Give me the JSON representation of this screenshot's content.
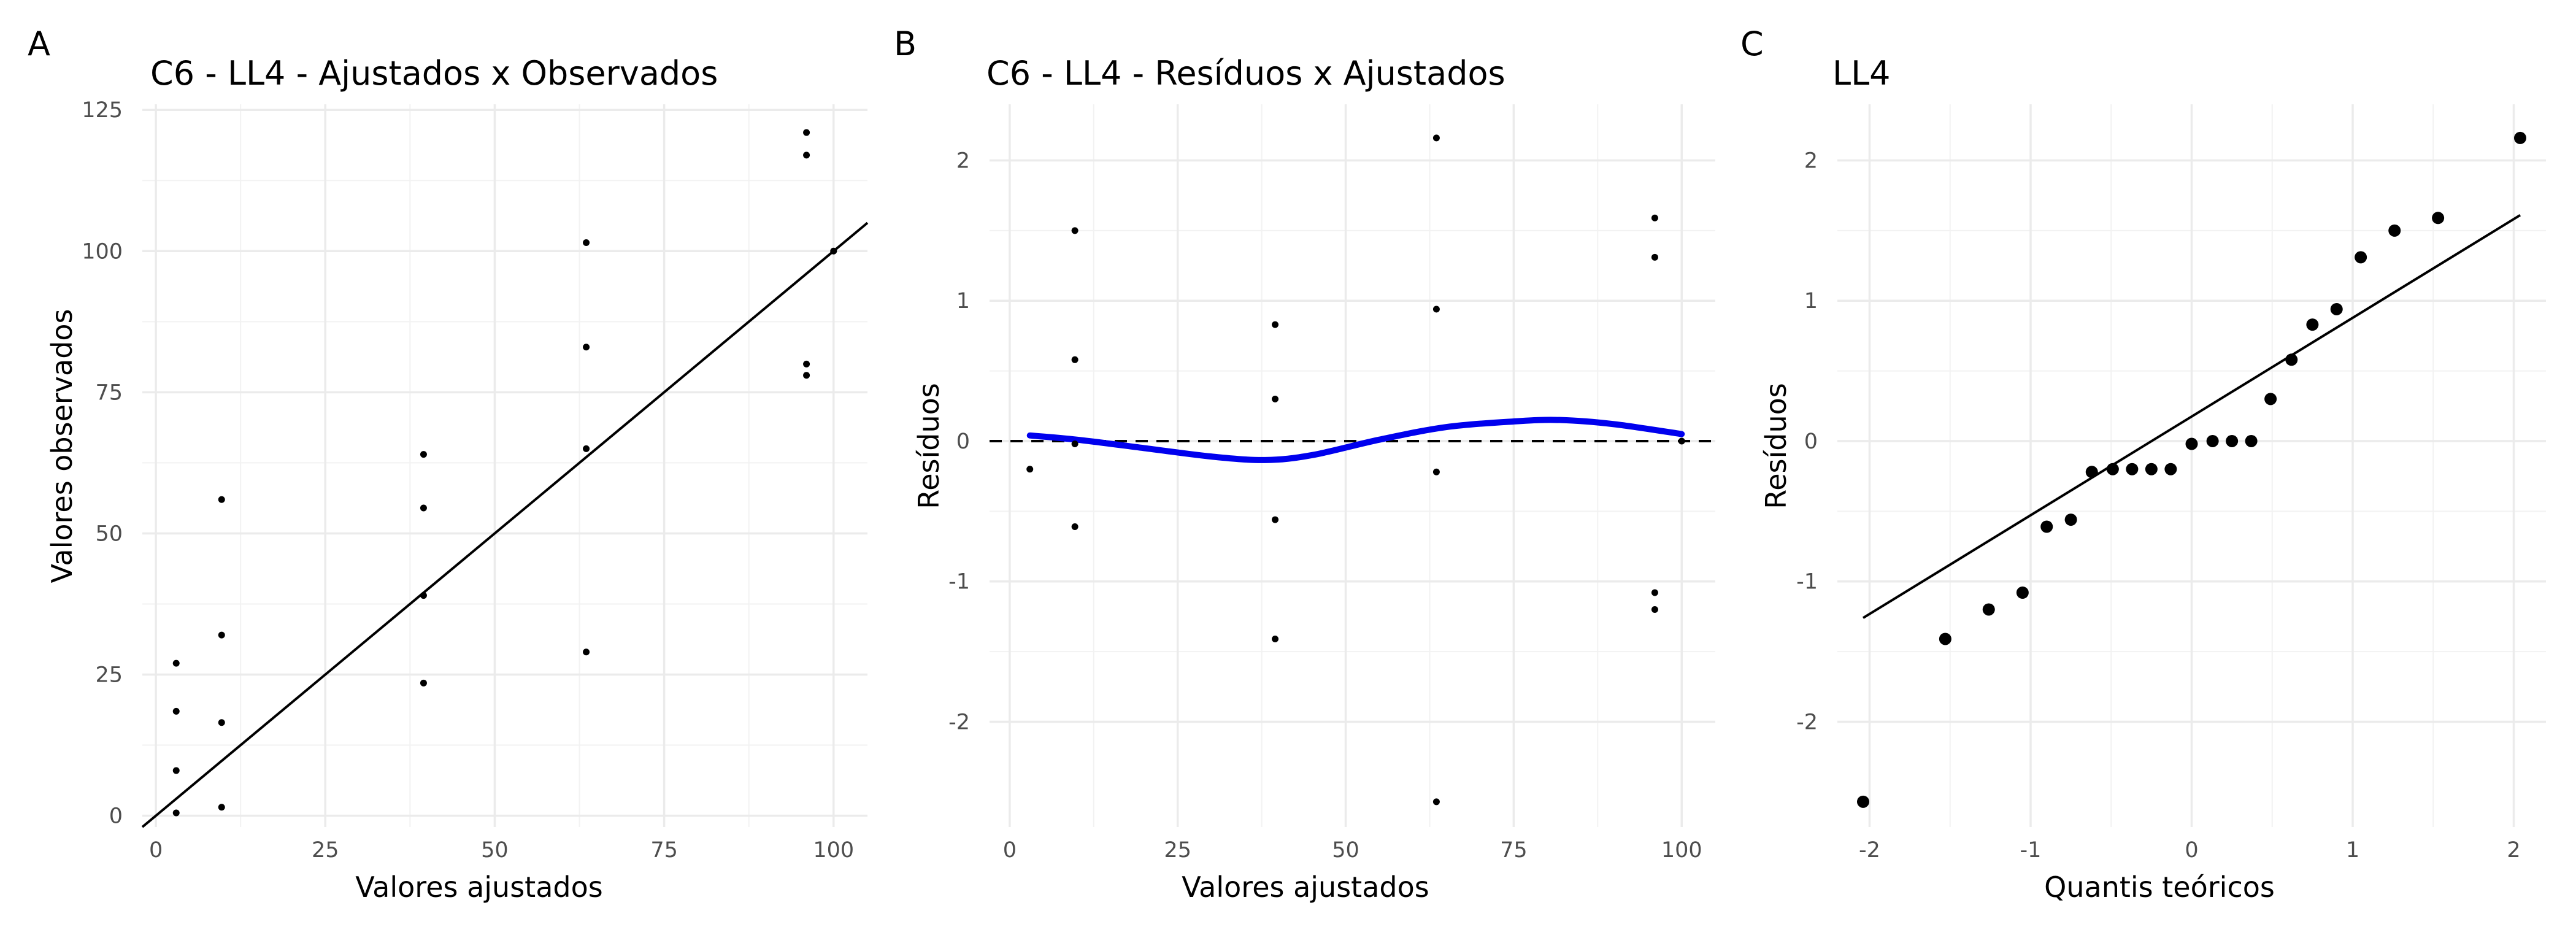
{
  "chart_data": [
    {
      "panel": "A",
      "type": "scatter",
      "title": "C6 - LL4 - Ajustados x Observados",
      "xlabel": "Valores ajustados",
      "ylabel": "Valores observados",
      "xlim": [
        -2,
        105
      ],
      "ylim": [
        -2,
        126
      ],
      "xticks": [
        0,
        25,
        50,
        75,
        100
      ],
      "yticks": [
        0,
        25,
        50,
        75,
        100,
        125
      ],
      "grid": true,
      "reference_line": {
        "slope": 1,
        "intercept": 0
      },
      "points": [
        {
          "x": 3,
          "y": 27
        },
        {
          "x": 3,
          "y": 18.5
        },
        {
          "x": 3,
          "y": 8
        },
        {
          "x": 3,
          "y": 0.5
        },
        {
          "x": 9.7,
          "y": 56
        },
        {
          "x": 9.7,
          "y": 32
        },
        {
          "x": 9.7,
          "y": 16.5
        },
        {
          "x": 9.7,
          "y": 1.5
        },
        {
          "x": 39.5,
          "y": 64
        },
        {
          "x": 39.5,
          "y": 54.5
        },
        {
          "x": 39.5,
          "y": 39
        },
        {
          "x": 39.5,
          "y": 23.5
        },
        {
          "x": 63.5,
          "y": 101.5
        },
        {
          "x": 63.5,
          "y": 83
        },
        {
          "x": 63.5,
          "y": 65
        },
        {
          "x": 63.5,
          "y": 29
        },
        {
          "x": 96,
          "y": 121
        },
        {
          "x": 96,
          "y": 117
        },
        {
          "x": 96,
          "y": 80
        },
        {
          "x": 96,
          "y": 78
        },
        {
          "x": 100,
          "y": 100
        }
      ]
    },
    {
      "panel": "B",
      "type": "scatter",
      "title": "C6 - LL4 - Resíduos x Ajustados",
      "xlabel": "Valores ajustados",
      "ylabel": "Resíduos",
      "xlim": [
        -3,
        105
      ],
      "ylim": [
        -2.75,
        2.4
      ],
      "xticks": [
        0,
        25,
        50,
        75,
        100
      ],
      "yticks": [
        -2,
        -1,
        0,
        1,
        2
      ],
      "grid": true,
      "hline": 0,
      "points": [
        {
          "x": 3,
          "y": -0.2
        },
        {
          "x": 9.7,
          "y": 1.5
        },
        {
          "x": 9.7,
          "y": 0.58
        },
        {
          "x": 9.7,
          "y": -0.02
        },
        {
          "x": 9.7,
          "y": -0.61
        },
        {
          "x": 39.5,
          "y": 0.83
        },
        {
          "x": 39.5,
          "y": 0.3
        },
        {
          "x": 39.5,
          "y": -0.56
        },
        {
          "x": 39.5,
          "y": -1.41
        },
        {
          "x": 63.5,
          "y": 2.16
        },
        {
          "x": 63.5,
          "y": 0.94
        },
        {
          "x": 63.5,
          "y": -0.22
        },
        {
          "x": 63.5,
          "y": -2.57
        },
        {
          "x": 96,
          "y": 1.59
        },
        {
          "x": 96,
          "y": 1.31
        },
        {
          "x": 96,
          "y": -1.08
        },
        {
          "x": 96,
          "y": -1.2
        },
        {
          "x": 100,
          "y": 0
        }
      ],
      "smooth": [
        {
          "x": 3,
          "y": 0.04
        },
        {
          "x": 10,
          "y": 0.01
        },
        {
          "x": 20,
          "y": -0.05
        },
        {
          "x": 30,
          "y": -0.11
        },
        {
          "x": 38,
          "y": -0.135
        },
        {
          "x": 45,
          "y": -0.1
        },
        {
          "x": 55,
          "y": 0.01
        },
        {
          "x": 65,
          "y": 0.1
        },
        {
          "x": 75,
          "y": 0.14
        },
        {
          "x": 82,
          "y": 0.15
        },
        {
          "x": 90,
          "y": 0.12
        },
        {
          "x": 100,
          "y": 0.05
        }
      ]
    },
    {
      "panel": "C",
      "type": "scatter",
      "title": "LL4",
      "xlabel": "Quantis teóricos",
      "ylabel": "Resíduos",
      "xlim": [
        -2.2,
        2.2
      ],
      "ylim": [
        -2.75,
        2.4
      ],
      "xticks": [
        -2,
        -1,
        0,
        1,
        2
      ],
      "yticks": [
        -2,
        -1,
        0,
        1,
        2
      ],
      "grid": true,
      "reference_line": {
        "x1": -2.04,
        "y1": -1.26,
        "x2": 2.04,
        "y2": 1.61
      },
      "points": [
        {
          "x": -2.04,
          "y": -2.57
        },
        {
          "x": -1.53,
          "y": -1.41
        },
        {
          "x": -1.26,
          "y": -1.2
        },
        {
          "x": -1.05,
          "y": -1.08
        },
        {
          "x": -0.9,
          "y": -0.61
        },
        {
          "x": -0.75,
          "y": -0.56
        },
        {
          "x": -0.62,
          "y": -0.22
        },
        {
          "x": -0.49,
          "y": -0.2
        },
        {
          "x": -0.37,
          "y": -0.2
        },
        {
          "x": -0.25,
          "y": -0.2
        },
        {
          "x": -0.13,
          "y": -0.2
        },
        {
          "x": 0,
          "y": -0.02
        },
        {
          "x": 0.13,
          "y": 0
        },
        {
          "x": 0.25,
          "y": 0
        },
        {
          "x": 0.37,
          "y": 0
        },
        {
          "x": 0.49,
          "y": 0.3
        },
        {
          "x": 0.62,
          "y": 0.58
        },
        {
          "x": 0.75,
          "y": 0.83
        },
        {
          "x": 0.9,
          "y": 0.94
        },
        {
          "x": 1.05,
          "y": 1.31
        },
        {
          "x": 1.26,
          "y": 1.5
        },
        {
          "x": 1.53,
          "y": 1.59
        },
        {
          "x": 2.04,
          "y": 2.16
        }
      ]
    }
  ]
}
